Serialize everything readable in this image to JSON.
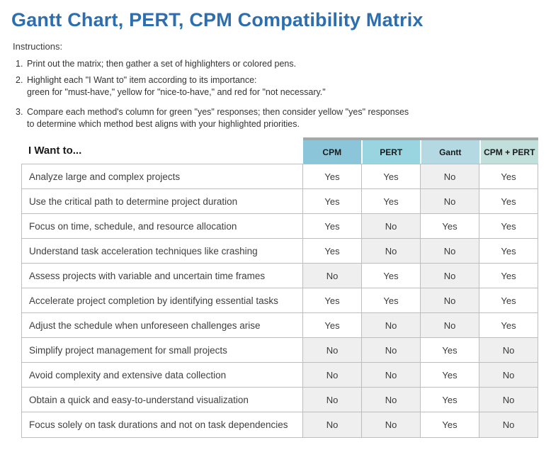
{
  "page": {
    "title": "Gantt Chart, PERT, CPM Compatibility Matrix",
    "instructions_label": "Instructions:",
    "instructions": [
      {
        "num": "1.",
        "lines": [
          "Print out the matrix; then gather a set of highlighters or colored pens."
        ],
        "spaced": false
      },
      {
        "num": "2.",
        "lines": [
          "Highlight each \"I Want to\" item according to its importance:",
          "green for \"must-have,\" yellow for \"nice-to-have,\" and red for \"not necessary.\""
        ],
        "spaced": false
      },
      {
        "num": "3.",
        "lines": [
          "Compare each method's column for green \"yes\" responses; then consider yellow \"yes\" responses",
          "to determine which method best aligns with your highlighted priorities."
        ],
        "spaced": true
      }
    ]
  },
  "table": {
    "row_header_label": "I Want to...",
    "columns": [
      {
        "label": "CPM",
        "color": "#8AC5DA"
      },
      {
        "label": "PERT",
        "color": "#98D5E0"
      },
      {
        "label": "Gantt",
        "color": "#B5D9E2"
      },
      {
        "label": "CPM + PERT",
        "color": "#C2E0DB"
      }
    ],
    "cell_styles": {
      "yes_bg": "#FFFFFF",
      "no_bg": "#EFEFEF"
    },
    "rows": [
      {
        "label": "Analyze large and complex projects",
        "values": [
          "Yes",
          "Yes",
          "No",
          "Yes"
        ]
      },
      {
        "label": "Use the critical path to determine project duration",
        "values": [
          "Yes",
          "Yes",
          "No",
          "Yes"
        ]
      },
      {
        "label": "Focus on time, schedule, and resource allocation",
        "values": [
          "Yes",
          "No",
          "Yes",
          "Yes"
        ]
      },
      {
        "label": "Understand task acceleration techniques like crashing",
        "values": [
          "Yes",
          "No",
          "No",
          "Yes"
        ]
      },
      {
        "label": "Assess projects with variable and uncertain time frames",
        "values": [
          "No",
          "Yes",
          "No",
          "Yes"
        ]
      },
      {
        "label": "Accelerate project completion by identifying essential tasks",
        "values": [
          "Yes",
          "Yes",
          "No",
          "Yes"
        ]
      },
      {
        "label": "Adjust the schedule when unforeseen challenges arise",
        "values": [
          "Yes",
          "No",
          "No",
          "Yes"
        ]
      },
      {
        "label": "Simplify project management for small projects",
        "values": [
          "No",
          "No",
          "Yes",
          "No"
        ]
      },
      {
        "label": "Avoid complexity and extensive data collection",
        "values": [
          "No",
          "No",
          "Yes",
          "No"
        ]
      },
      {
        "label": "Obtain a quick and easy-to-understand visualization",
        "values": [
          "No",
          "No",
          "Yes",
          "No"
        ]
      },
      {
        "label": "Focus solely on task durations and not on task dependencies",
        "values": [
          "No",
          "No",
          "Yes",
          "No"
        ]
      }
    ]
  },
  "colors": {
    "title_blue": "#2D6EAF",
    "header_top_strip": "#A7A7A7",
    "grid_border": "#BDBDBD"
  }
}
